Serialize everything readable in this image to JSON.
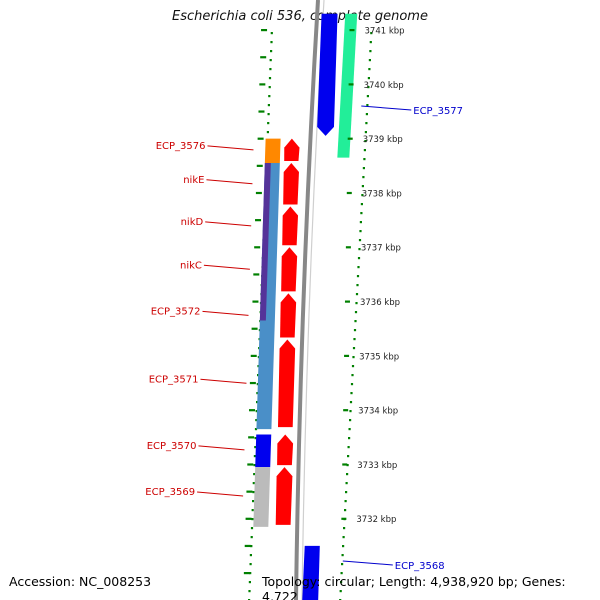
{
  "title": "Escherichia coli 536, complete genome",
  "footer": {
    "accession": "Accession: NC_008253",
    "info": "Topology: circular; Length: 4,938,920 bp; Genes: 4,722"
  },
  "colors": {
    "label_red": "#cc0000",
    "label_blue": "#0000cc",
    "tick_green": "#008000",
    "cds_red": "#ff0000",
    "cds_blue": "#0000ee",
    "cds_orange": "#ff8800",
    "cds_grey": "#bbbbbb",
    "cds_mint": "#22ee99",
    "cds_steel": "#4a8fc8",
    "cds_purple": "#553399",
    "backbone": "#888888"
  },
  "scale": {
    "unit": "kbp",
    "ticks": [
      {
        "pos": 3741,
        "label": "3741 kbp"
      },
      {
        "pos": 3740,
        "label": "3740 kbp"
      },
      {
        "pos": 3739,
        "label": "3739 kbp"
      },
      {
        "pos": 3738,
        "label": "3738 kbp"
      },
      {
        "pos": 3737,
        "label": "3737 kbp"
      },
      {
        "pos": 3736,
        "label": "3736 kbp"
      },
      {
        "pos": 3735,
        "label": "3735 kbp"
      },
      {
        "pos": 3734,
        "label": "3734 kbp"
      },
      {
        "pos": 3733,
        "label": "3733 kbp"
      },
      {
        "pos": 3732,
        "label": "3732 kbp"
      }
    ]
  },
  "genes": [
    {
      "name": "ECP_3577",
      "strand": "forward",
      "start": 3739.05,
      "end": 3741.3,
      "color": "cds_blue",
      "labeled": true
    },
    {
      "name": "ECP_3568",
      "strand": "forward",
      "start": 3730.3,
      "end": 3731.5,
      "color": "cds_blue",
      "labeled": true
    },
    {
      "name": "ECP_3576",
      "strand": "reverse",
      "start": 3738.55,
      "end": 3739.0,
      "color": "cds_red",
      "labeled": true
    },
    {
      "name": "nikE",
      "strand": "reverse",
      "start": 3737.75,
      "end": 3738.55,
      "color": "cds_red",
      "labeled": true
    },
    {
      "name": "nikD",
      "strand": "reverse",
      "start": 3737.0,
      "end": 3737.75,
      "color": "cds_red",
      "labeled": true
    },
    {
      "name": "nikC",
      "strand": "reverse",
      "start": 3736.15,
      "end": 3737.0,
      "color": "cds_red",
      "labeled": true
    },
    {
      "name": "ECP_3572",
      "strand": "reverse",
      "start": 3735.3,
      "end": 3736.15,
      "color": "cds_red",
      "labeled": true
    },
    {
      "name": "ECP_3571",
      "strand": "reverse",
      "start": 3733.65,
      "end": 3735.3,
      "color": "cds_red",
      "labeled": true
    },
    {
      "name": "ECP_3570",
      "strand": "reverse",
      "start": 3732.95,
      "end": 3733.55,
      "color": "cds_red",
      "labeled": true
    },
    {
      "name": "ECP_3569",
      "strand": "reverse",
      "start": 3731.85,
      "end": 3732.95,
      "color": "cds_red",
      "labeled": true
    }
  ],
  "feature_bars": [
    {
      "side": "outer",
      "start": 3738.65,
      "end": 3741.3,
      "color": "cds_mint"
    },
    {
      "side": "inner",
      "start": 3738.55,
      "end": 3739.0,
      "color": "cds_orange"
    },
    {
      "side": "inner",
      "start": 3733.65,
      "end": 3738.55,
      "color": "cds_steel"
    },
    {
      "side": "inner-left",
      "start": 3735.65,
      "end": 3738.55,
      "color": "cds_purple"
    },
    {
      "side": "inner",
      "start": 3732.95,
      "end": 3733.55,
      "color": "cds_blue"
    },
    {
      "side": "inner",
      "start": 3731.85,
      "end": 3732.95,
      "color": "cds_grey"
    }
  ]
}
